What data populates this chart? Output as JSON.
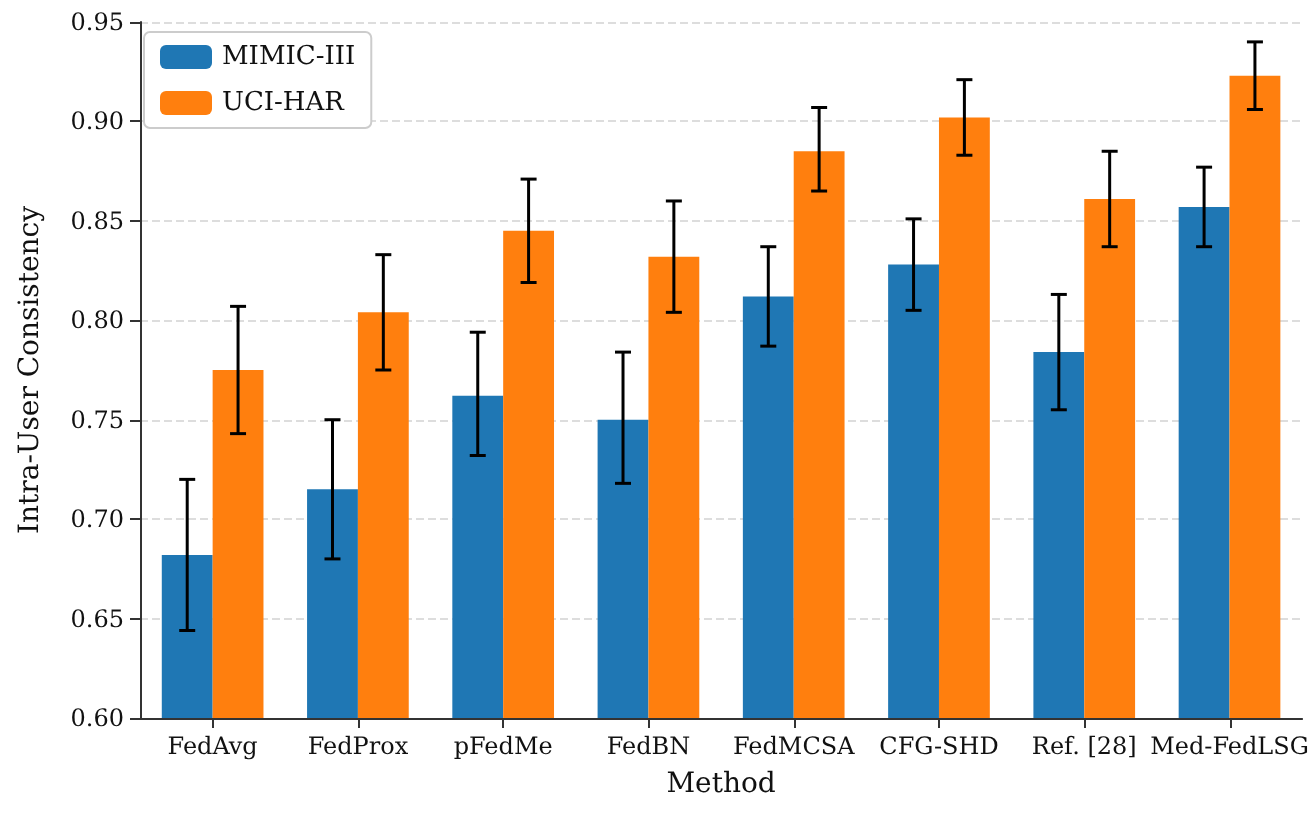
{
  "chart_data": {
    "type": "bar",
    "xlabel": "Method",
    "ylabel": "Intra-User Consistency",
    "categories": [
      "FedAvg",
      "FedProx",
      "pFedMe",
      "FedBN",
      "FedMCSA",
      "CFG-SHD",
      "Ref. [28]",
      "Med-FedLSG"
    ],
    "series": [
      {
        "name": "MIMIC-III",
        "color": "#1f77b4",
        "values": [
          0.682,
          0.715,
          0.762,
          0.75,
          0.812,
          0.828,
          0.784,
          0.857
        ],
        "errors": [
          [
            0.644,
            0.72
          ],
          [
            0.68,
            0.75
          ],
          [
            0.732,
            0.794
          ],
          [
            0.718,
            0.784
          ],
          [
            0.787,
            0.837
          ],
          [
            0.805,
            0.851
          ],
          [
            0.755,
            0.813
          ],
          [
            0.837,
            0.877
          ]
        ]
      },
      {
        "name": "UCI-HAR",
        "color": "#ff7f0e",
        "values": [
          0.775,
          0.804,
          0.845,
          0.832,
          0.885,
          0.902,
          0.861,
          0.923
        ],
        "errors": [
          [
            0.743,
            0.807
          ],
          [
            0.775,
            0.833
          ],
          [
            0.819,
            0.871
          ],
          [
            0.804,
            0.86
          ],
          [
            0.865,
            0.907
          ],
          [
            0.883,
            0.921
          ],
          [
            0.837,
            0.885
          ],
          [
            0.906,
            0.94
          ]
        ]
      }
    ],
    "ylim": [
      0.6,
      0.95
    ],
    "yticks": [
      {
        "value": 0.6,
        "label": "0.60"
      },
      {
        "value": 0.65,
        "label": "0.65"
      },
      {
        "value": 0.7,
        "label": "0.70"
      },
      {
        "value": 0.75,
        "label": "0.75"
      },
      {
        "value": 0.8,
        "label": "0.80"
      },
      {
        "value": 0.85,
        "label": "0.85"
      },
      {
        "value": 0.9,
        "label": "0.90"
      },
      {
        "value": 0.95,
        "label": "0.95"
      }
    ],
    "grid": "y",
    "legend": "top left"
  }
}
